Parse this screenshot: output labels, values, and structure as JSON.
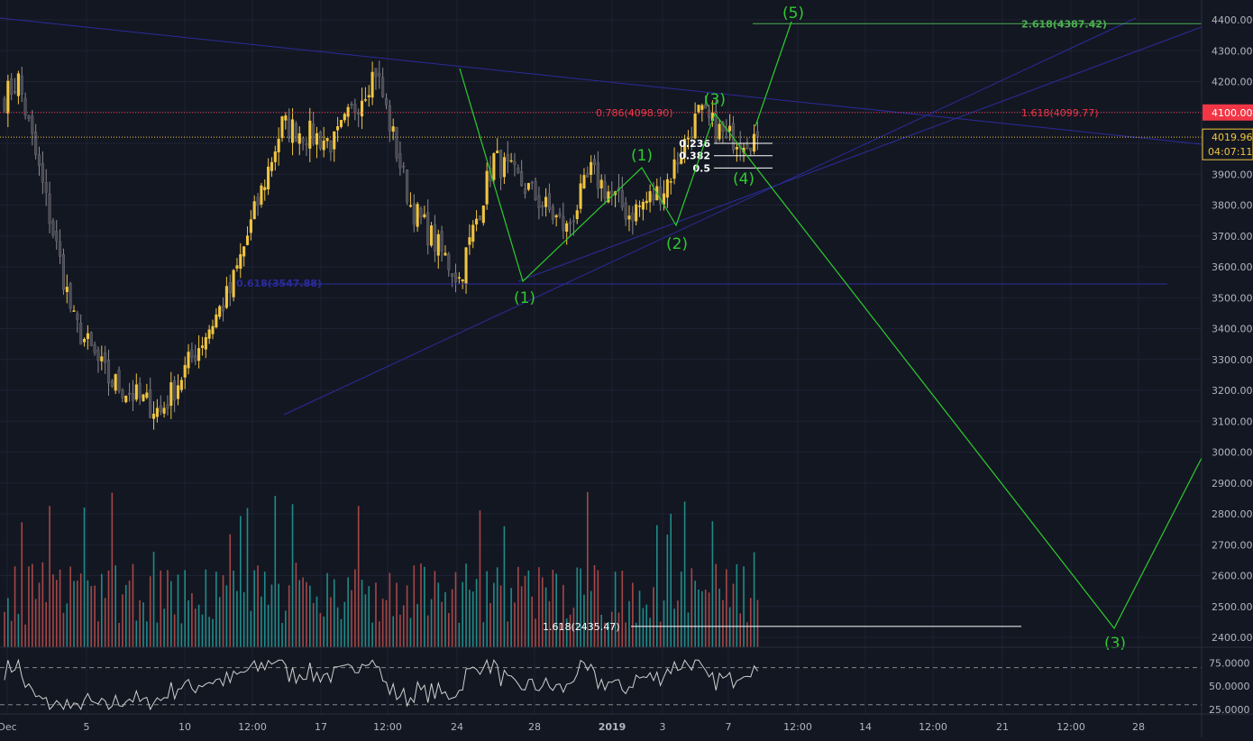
{
  "chart_data": {
    "type": "candlestick",
    "price_axis": {
      "ticks": [
        2400,
        2500,
        2600,
        2700,
        2800,
        2900,
        3000,
        3100,
        3200,
        3300,
        3400,
        3500,
        3600,
        3700,
        3800,
        3900,
        4000,
        4100,
        4200,
        4300,
        4400
      ],
      "ylim": [
        2380,
        4410
      ],
      "tick_labels": [
        "2400.00",
        "2500.00",
        "2600.00",
        "2700.00",
        "2800.00",
        "2900.00",
        "3000.00",
        "3100.00",
        "3200.00",
        "3300.00",
        "3400.00",
        "3500.00",
        "3600.00",
        "3700.00",
        "3800.00",
        "3900.00",
        "4000.00",
        "4100.00",
        "4200.00",
        "4300.00",
        "4400.00"
      ]
    },
    "time_axis": {
      "labels": [
        "Dec",
        "5",
        "10",
        "12:00",
        "17",
        "12:00",
        "24",
        "28",
        "2019",
        "3",
        "7",
        "12:00",
        "14",
        "12:00",
        "21",
        "12:00",
        "28"
      ],
      "bold_labels": [
        "2019"
      ]
    },
    "price_badges": {
      "red_level": {
        "price": 4100,
        "label": "4100.00",
        "color": "#f23645"
      },
      "last_price": {
        "price": 4019.96,
        "label": "4019.96",
        "countdown": "04:07:11",
        "color": "#f0c541"
      }
    },
    "key_points": [
      {
        "time": 0,
        "price": 4150
      },
      {
        "time": 4,
        "price": 4205
      },
      {
        "time": 20,
        "price": 3420
      },
      {
        "time": 30,
        "price": 3235
      },
      {
        "time": 45,
        "price": 3130
      },
      {
        "time": 65,
        "price": 3520
      },
      {
        "time": 80,
        "price": 4060
      },
      {
        "time": 95,
        "price": 4000
      },
      {
        "time": 107,
        "price": 4240
      },
      {
        "time": 117,
        "price": 3800
      },
      {
        "time": 131,
        "price": 3560
      },
      {
        "time": 141,
        "price": 3950
      },
      {
        "time": 151,
        "price": 3850
      },
      {
        "time": 162,
        "price": 3720
      },
      {
        "time": 169,
        "price": 3905
      },
      {
        "time": 180,
        "price": 3770
      },
      {
        "time": 190,
        "price": 3855
      },
      {
        "time": 200,
        "price": 4095
      },
      {
        "time": 208,
        "price": 4020
      },
      {
        "time": 217,
        "price": 4020
      }
    ],
    "annotations": {
      "fib_lines": [
        {
          "label": "0.786(4098.90)",
          "price": 4100,
          "color": "#f23645"
        },
        {
          "label": "1.618(4099.77)",
          "price": 4100,
          "color": "#f23645"
        },
        {
          "label": "2.618(4387.42)",
          "price": 4387.42,
          "color": "#4caf50"
        },
        {
          "label": "0.618(3547.88)",
          "price": 3547.88,
          "color": "#2a2aa0"
        },
        {
          "label": "1.618(2435.47)",
          "price": 2435.47,
          "color": "#ffffff"
        }
      ],
      "retracement": [
        {
          "label": "0.236",
          "price": 4000
        },
        {
          "label": "0.382",
          "price": 3960
        },
        {
          "label": "0.5",
          "price": 3920
        }
      ],
      "waves": [
        {
          "label": "(5)",
          "price": 4440
        },
        {
          "label": "(3)",
          "price": 4105
        },
        {
          "label": "(1)",
          "price": 3910
        },
        {
          "label": "(4)",
          "price": 3890
        },
        {
          "label": "(2)",
          "price": 3720
        },
        {
          "label": "(1)",
          "price": 3500
        },
        {
          "label": "(3)",
          "price": 2395
        }
      ]
    },
    "volume": {
      "note": "volume histogram below price, colored by candle direction"
    },
    "rsi": {
      "ticks": [
        25,
        50,
        75
      ],
      "tick_labels": [
        "25.0000",
        "50.0000",
        "75.0000"
      ],
      "bands": [
        70,
        30
      ],
      "ylim": [
        20,
        90
      ]
    },
    "colors": {
      "background": "#131722",
      "up": "#f0c541",
      "down": "#4a4a52",
      "vol_up": "#22a09a",
      "vol_down": "#c0504d",
      "wave_line": "#2ecc2e",
      "trend_line": "#2b2b9a",
      "grid": "#1e2233",
      "axis_text": "#b2b5be"
    }
  }
}
